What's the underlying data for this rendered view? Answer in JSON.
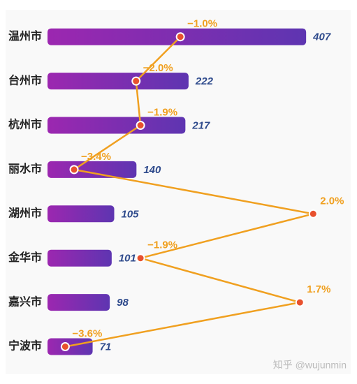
{
  "chart_data": {
    "type": "bar-line",
    "categories": [
      "温州市",
      "台州市",
      "杭州市",
      "丽水市",
      "湖州市",
      "金华市",
      "嘉兴市",
      "宁波市"
    ],
    "series": [
      {
        "values": [
          407,
          222,
          217,
          140,
          105,
          101,
          98,
          71
        ],
        "color": [
          "#9c27b0",
          "#5e35b1"
        ]
      },
      {
        "values": [
          -1.0,
          -2.0,
          -1.9,
          -3.4,
          2.0,
          -1.9,
          1.7,
          -3.6
        ],
        "value_labels": [
          "−1.0%",
          "−2.0%",
          "−1.9%",
          "−3.4%",
          "2.0%",
          "−1.9%",
          "1.7%",
          "−3.6%"
        ],
        "color": "#f0a020",
        "marker_color": "#e8512e",
        "axis": "x2"
      }
    ],
    "xlim": [
      0,
      453
    ],
    "x2lim": [
      -4,
      2.5
    ],
    "watermark": "知乎 @wujunmin"
  }
}
